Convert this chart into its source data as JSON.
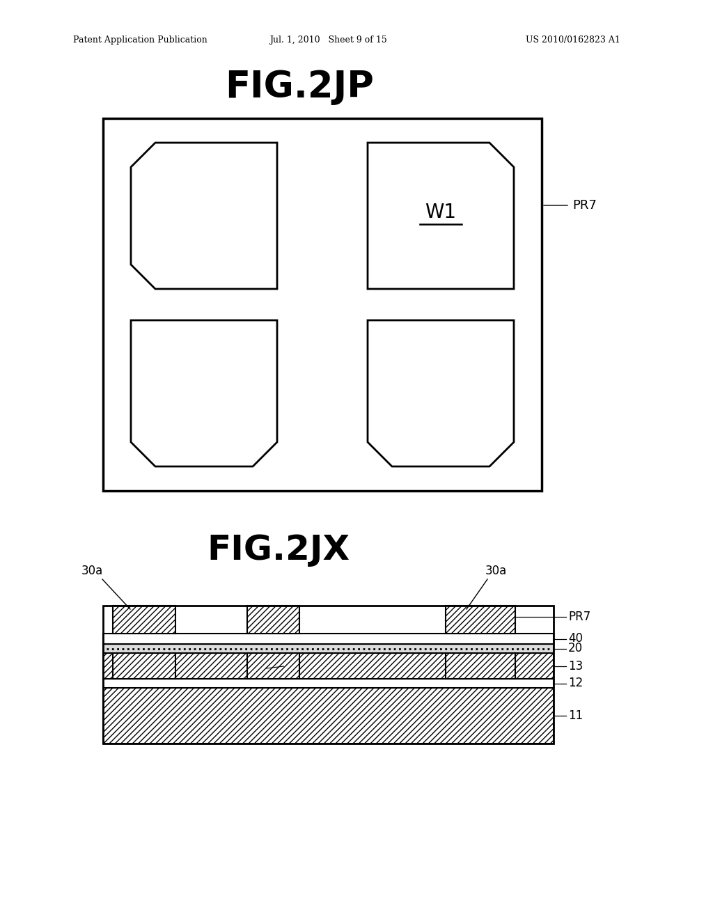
{
  "bg_color": "#ffffff",
  "header_left": "Patent Application Publication",
  "header_mid": "Jul. 1, 2010   Sheet 9 of 15",
  "header_right": "US 2010/0162823 A1",
  "fig1_title": "FIG.2JP",
  "fig2_title": "FIG.2JX",
  "pr7_label": "PR7",
  "w1_label": "W1",
  "line_color": "#000000"
}
